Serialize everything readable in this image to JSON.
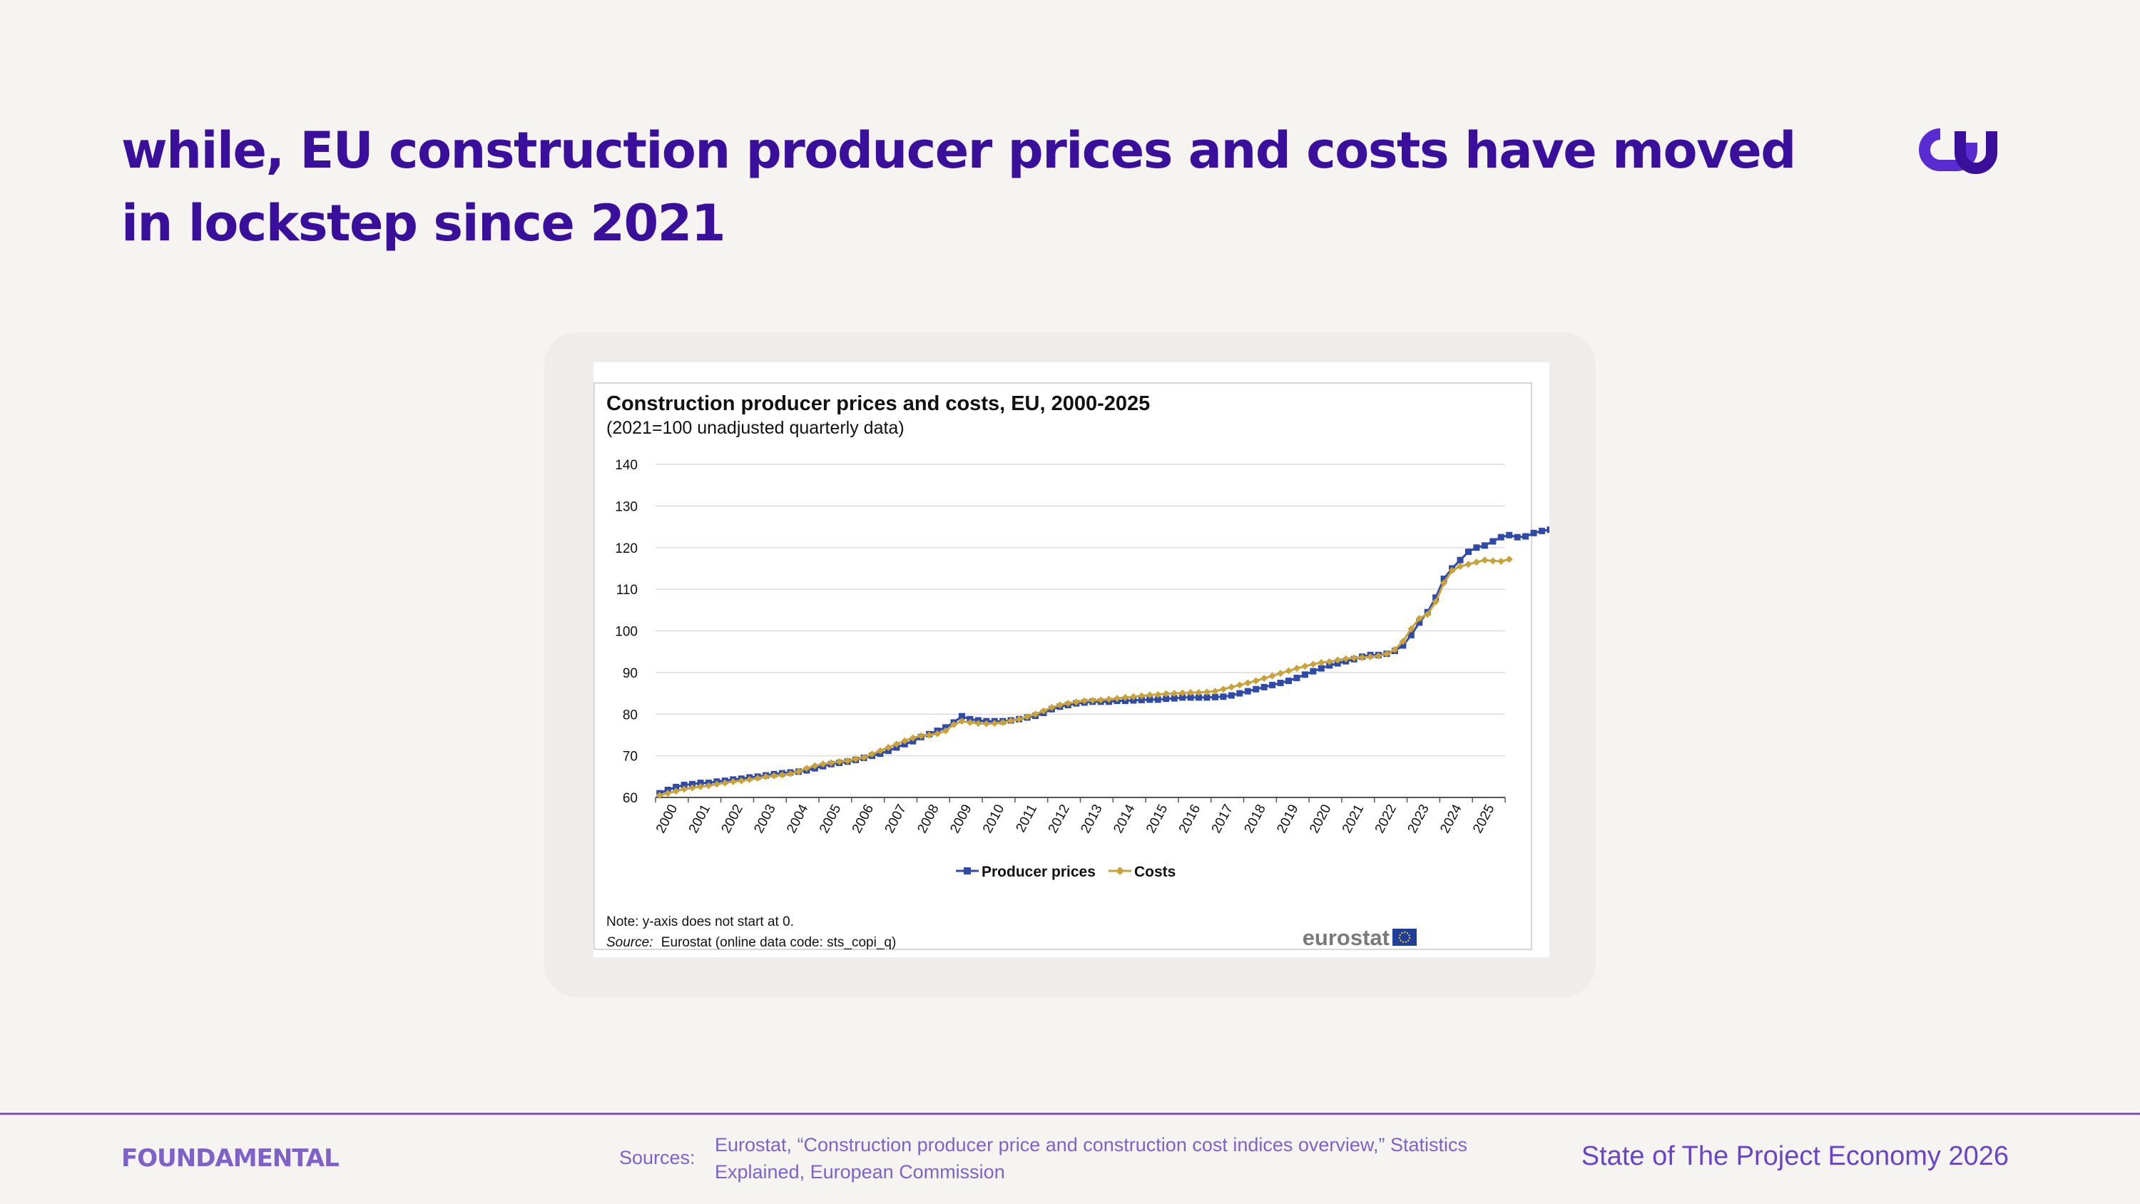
{
  "slide": {
    "headline": "while, EU construction producer prices and costs have moved in lockstep since 2021",
    "logo_icon": "infinity-swirl-icon",
    "brand": "FOUNDAMENTAL",
    "sources_label": "Sources:",
    "sources_text": "Eurostat, “Construction producer price and construction cost indices overview,” Statistics Explained, European Commission",
    "report_title": "State of The Project Economy 2026",
    "colors": {
      "accent": "#3a0f9c",
      "muted": "#7e62c9",
      "background": "#f6f4f1"
    }
  },
  "chart_data": {
    "type": "line",
    "title": "Construction producer prices and costs, EU, 2000-2025",
    "subtitle": "(2021=100 unadjusted quarterly data)",
    "xlabel": "",
    "ylabel": "",
    "ylim": [
      60,
      140
    ],
    "yticks": [
      "140",
      "130",
      "120",
      "110",
      "100",
      "90",
      "80",
      "70",
      "60"
    ],
    "x_tick_labels": [
      "2000",
      "2001",
      "2002",
      "2003",
      "2004",
      "2005",
      "2006",
      "2007",
      "2008",
      "2009",
      "2010",
      "2011",
      "2012",
      "2013",
      "2014",
      "2015",
      "2016",
      "2017",
      "2018",
      "2019",
      "2020",
      "2021",
      "2022",
      "2023",
      "2024",
      "2025"
    ],
    "x_start_year": 2000,
    "grid": true,
    "legend_position": "bottom-center",
    "series": [
      {
        "name": "Producer prices",
        "color": "#2f4aa8",
        "values": [
          61.0,
          61.8,
          62.5,
          63.0,
          63.2,
          63.5,
          63.5,
          63.8,
          64.0,
          64.3,
          64.5,
          64.8,
          65.0,
          65.3,
          65.6,
          65.8,
          66.0,
          66.2,
          66.5,
          67.0,
          67.5,
          68.0,
          68.3,
          68.6,
          69.0,
          69.5,
          70.0,
          70.5,
          71.2,
          72.0,
          72.8,
          73.5,
          74.5,
          75.2,
          76.0,
          76.8,
          78.0,
          79.5,
          78.8,
          78.5,
          78.3,
          78.3,
          78.3,
          78.5,
          78.8,
          79.2,
          79.6,
          80.3,
          81.2,
          81.8,
          82.2,
          82.6,
          82.8,
          83.0,
          83.0,
          83.0,
          83.2,
          83.2,
          83.3,
          83.4,
          83.5,
          83.5,
          83.7,
          83.8,
          84.0,
          84.0,
          84.0,
          84.0,
          84.1,
          84.2,
          84.5,
          85.0,
          85.5,
          86.0,
          86.5,
          87.0,
          87.5,
          88.0,
          88.7,
          89.5,
          90.3,
          91.0,
          91.7,
          92.2,
          92.7,
          93.2,
          93.8,
          94.2,
          94.2,
          94.5,
          95.2,
          96.5,
          99.0,
          102.0,
          104.5,
          108.0,
          112.5,
          115.0,
          117.0,
          119.0,
          120.0,
          120.5,
          121.5,
          122.5,
          123.0,
          122.5,
          122.7,
          123.5,
          124.0,
          124.3
        ]
      },
      {
        "name": "Costs",
        "color": "#c9a23a",
        "values": [
          60.5,
          61.0,
          61.5,
          62.0,
          62.3,
          62.6,
          62.8,
          63.2,
          63.5,
          63.8,
          64.0,
          64.3,
          64.6,
          65.0,
          65.2,
          65.4,
          65.7,
          66.2,
          67.0,
          67.6,
          68.0,
          68.3,
          68.6,
          68.8,
          69.2,
          69.6,
          70.4,
          71.2,
          72.0,
          72.8,
          73.6,
          74.3,
          74.8,
          75.0,
          75.3,
          76.0,
          77.5,
          78.3,
          78.0,
          77.8,
          77.7,
          77.8,
          78.0,
          78.4,
          78.8,
          79.4,
          80.0,
          80.8,
          81.6,
          82.2,
          82.6,
          82.9,
          83.2,
          83.3,
          83.4,
          83.6,
          83.8,
          84.0,
          84.2,
          84.4,
          84.6,
          84.7,
          84.9,
          85.0,
          85.1,
          85.2,
          85.2,
          85.3,
          85.5,
          86.0,
          86.5,
          87.0,
          87.5,
          88.0,
          88.6,
          89.2,
          89.8,
          90.4,
          91.0,
          91.5,
          92.0,
          92.4,
          92.6,
          93.0,
          93.3,
          93.5,
          93.6,
          93.8,
          94.0,
          94.5,
          95.5,
          97.5,
          100.5,
          103.0,
          104.0,
          107.0,
          111.5,
          114.5,
          115.5,
          116.0,
          116.5,
          117.0,
          116.8,
          116.7,
          117.2
        ]
      }
    ],
    "note": "Note: y-axis does not start at 0.",
    "source_label": "Source:",
    "source_text": "Eurostat (online data code: sts_copi_q)",
    "publisher_logo": "eurostat",
    "eu_flag_icon": "eu-flag-icon"
  }
}
